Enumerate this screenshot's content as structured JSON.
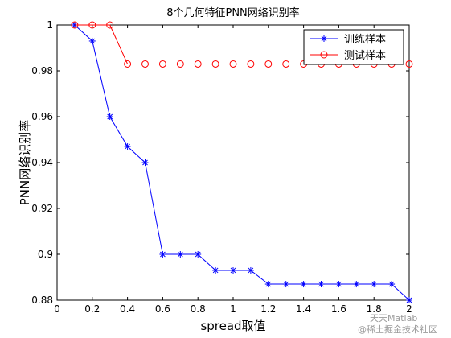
{
  "chart_data": {
    "type": "line",
    "title": "8个几何特征PNN网络识别率",
    "xlabel": "spread取值",
    "ylabel": "PNN网络识别率",
    "xlim": [
      0,
      2
    ],
    "ylim": [
      0.88,
      1
    ],
    "xticks": [
      0,
      0.2,
      0.4,
      0.6,
      0.8,
      1,
      1.2,
      1.4,
      1.6,
      1.8,
      2
    ],
    "xtick_labels": [
      "0",
      "0.2",
      "0.4",
      "0.6",
      "0.8",
      "1",
      "1.2",
      "1.4",
      "1.6",
      "1.8",
      "2"
    ],
    "yticks": [
      0.88,
      0.9,
      0.92,
      0.94,
      0.96,
      0.98,
      1
    ],
    "ytick_labels": [
      "0.88",
      "0.9",
      "0.92",
      "0.94",
      "0.96",
      "0.98",
      "1"
    ],
    "grid": false,
    "legend_position": "top-right",
    "x": [
      0.1,
      0.2,
      0.3,
      0.4,
      0.5,
      0.6,
      0.7,
      0.8,
      0.9,
      1.0,
      1.1,
      1.2,
      1.3,
      1.4,
      1.5,
      1.6,
      1.7,
      1.8,
      1.9,
      2.0
    ],
    "series": [
      {
        "name": "训练样本",
        "color": "#0000ff",
        "marker": "star",
        "values": [
          1.0,
          0.993,
          0.96,
          0.947,
          0.94,
          0.9,
          0.9,
          0.9,
          0.893,
          0.893,
          0.893,
          0.887,
          0.887,
          0.887,
          0.887,
          0.887,
          0.887,
          0.887,
          0.887,
          0.88
        ]
      },
      {
        "name": "测试样本",
        "color": "#ff0000",
        "marker": "circle",
        "values": [
          1.0,
          1.0,
          1.0,
          0.983,
          0.983,
          0.983,
          0.983,
          0.983,
          0.983,
          0.983,
          0.983,
          0.983,
          0.983,
          0.983,
          0.983,
          0.983,
          0.983,
          0.983,
          0.983,
          0.983
        ]
      }
    ]
  },
  "watermark": {
    "line1": "天天Matlab",
    "line2": "@稀土掘金技术社区"
  }
}
